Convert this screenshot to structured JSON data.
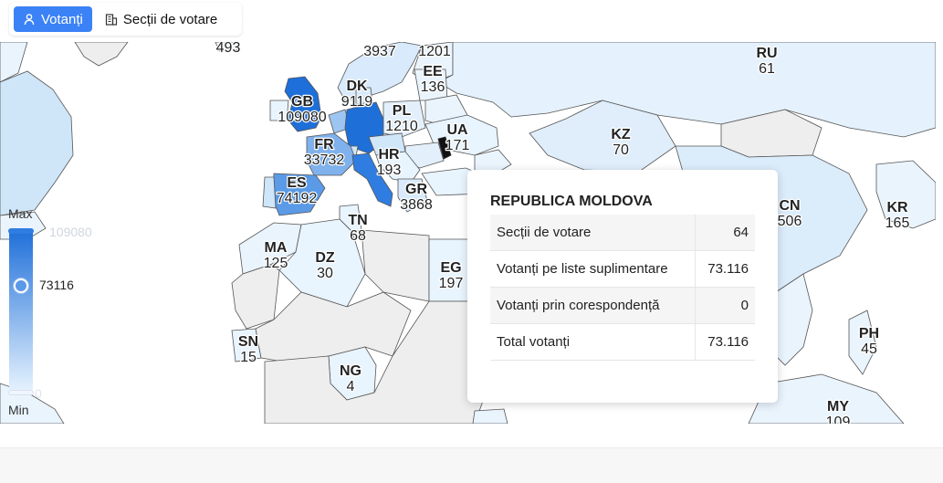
{
  "toolbar": {
    "tabs": [
      {
        "label": "Votanți",
        "icon": "person-icon",
        "active": true
      },
      {
        "label": "Secții de votare",
        "icon": "building-icon",
        "active": false
      }
    ]
  },
  "colors": {
    "accent": "#3b82f6",
    "ocean": "#ffffff",
    "no_data": "#eeeeee",
    "scale_max": "#1e6fd9",
    "scale_min": "#e8f4fe"
  },
  "legend": {
    "max_label": "Max",
    "min_label": "Min",
    "max_value": "109080",
    "min_value": "0",
    "current_value": "73116"
  },
  "map_labels": [
    {
      "code": "",
      "value": "493"
    },
    {
      "code": "",
      "value": "3937"
    },
    {
      "code": "",
      "value": "1201"
    },
    {
      "code": "RU",
      "value": "61"
    },
    {
      "code": "EE",
      "value": "136"
    },
    {
      "code": "DK",
      "value": "9119"
    },
    {
      "code": "GB",
      "value": "109080"
    },
    {
      "code": "PL",
      "value": "1210"
    },
    {
      "code": "UA",
      "value": "171"
    },
    {
      "code": "KZ",
      "value": "70"
    },
    {
      "code": "FR",
      "value": "33732"
    },
    {
      "code": "HR",
      "value": "193"
    },
    {
      "code": "ES",
      "value": "74192"
    },
    {
      "code": "GR",
      "value": "3868"
    },
    {
      "code": "CN",
      "value": "506"
    },
    {
      "code": "KR",
      "value": "165"
    },
    {
      "code": "TN",
      "value": "68"
    },
    {
      "code": "MA",
      "value": "125"
    },
    {
      "code": "DZ",
      "value": "30"
    },
    {
      "code": "EG",
      "value": "197"
    },
    {
      "code": "PH",
      "value": "45"
    },
    {
      "code": "SN",
      "value": "15"
    },
    {
      "code": "NG",
      "value": "4"
    },
    {
      "code": "MY",
      "value": "109"
    }
  ],
  "tooltip": {
    "title": "REPUBLICA MOLDOVA",
    "rows": [
      {
        "label": "Secții de votare",
        "value": "64"
      },
      {
        "label": "Votanți pe liste suplimentare",
        "value": "73.116"
      },
      {
        "label": "Votanți prin corespondență",
        "value": "0"
      },
      {
        "label": "Total votanți",
        "value": "73.116"
      }
    ]
  }
}
